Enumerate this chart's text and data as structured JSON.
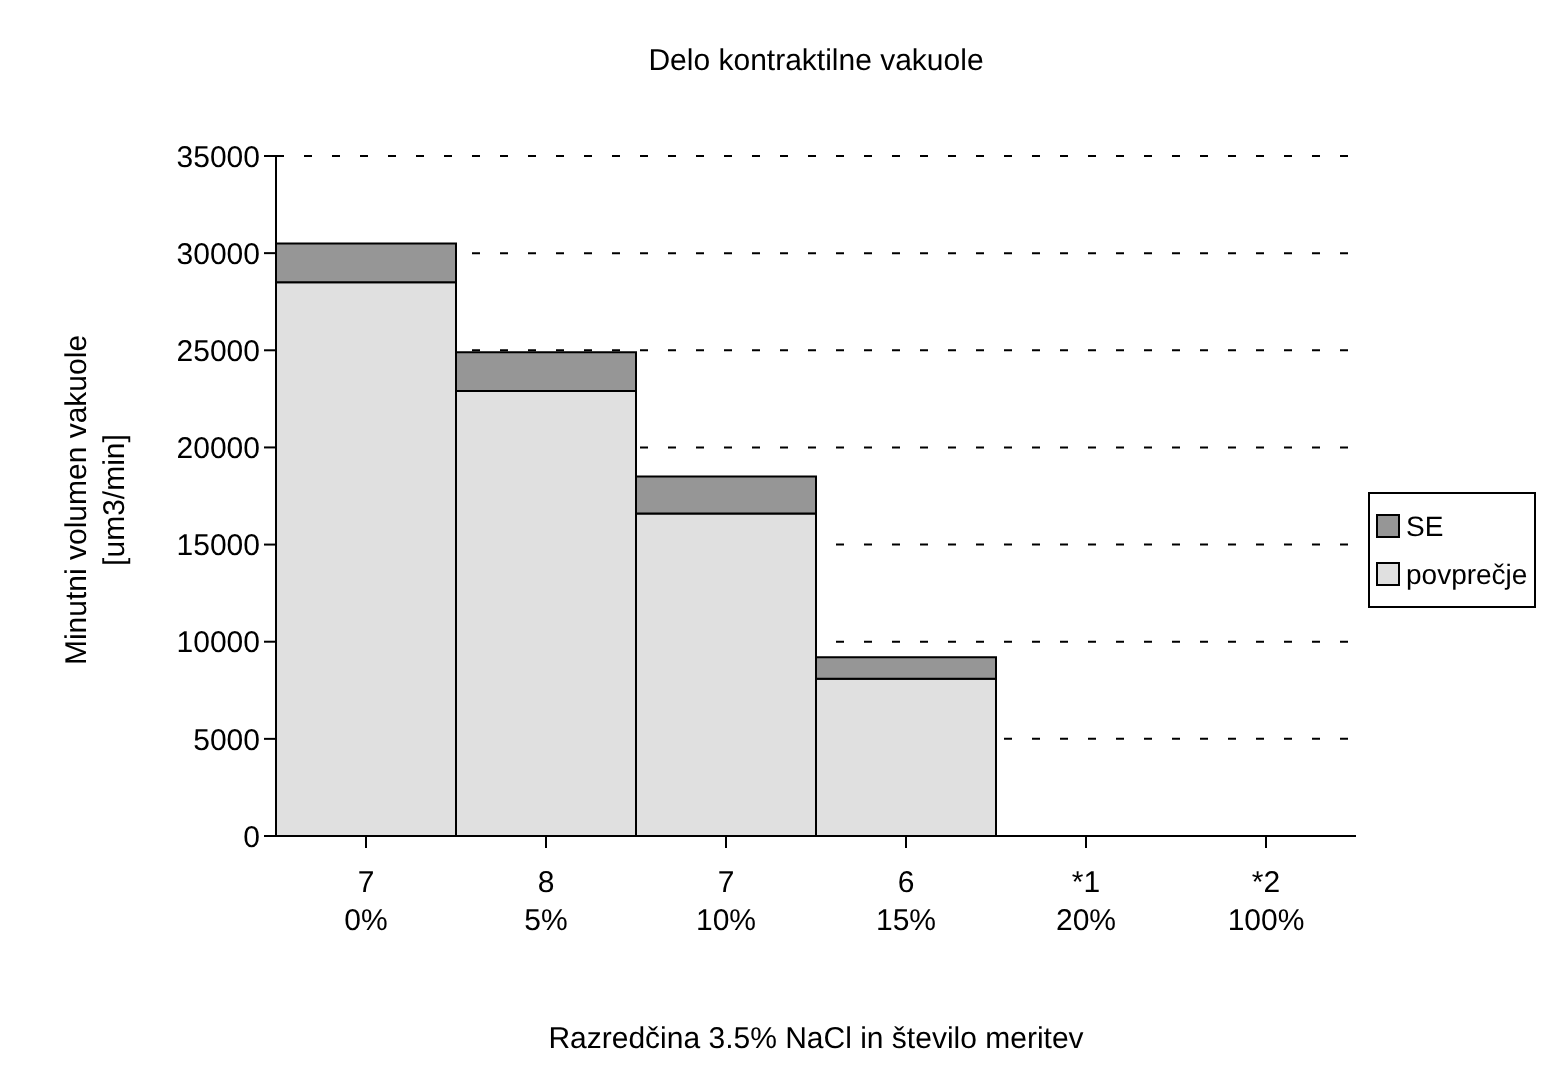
{
  "chart_data": {
    "type": "bar",
    "title": "Delo kontraktilne vakuole",
    "xlabel": "Razredčina 3.5% NaCl in število meritev",
    "ylabel": "Minutni volumen vakuole [um3/min]",
    "categories": [
      "7\n0%",
      "8\n5%",
      "7\n10%",
      "6\n15%",
      "*1\n20%",
      "*2\n100%"
    ],
    "stacked": true,
    "series": [
      {
        "name": "povprečje",
        "color": "#e0e0e0",
        "values": [
          28500,
          22900,
          16600,
          8100,
          0,
          0
        ]
      },
      {
        "name": "SE",
        "color": "#969696",
        "values": [
          2000,
          2000,
          1900,
          1100,
          0,
          0
        ]
      }
    ],
    "ylim": [
      0,
      35000
    ],
    "yticks": [
      0,
      5000,
      10000,
      15000,
      20000,
      25000,
      30000,
      35000
    ],
    "grid": "y",
    "legend": "right"
  }
}
